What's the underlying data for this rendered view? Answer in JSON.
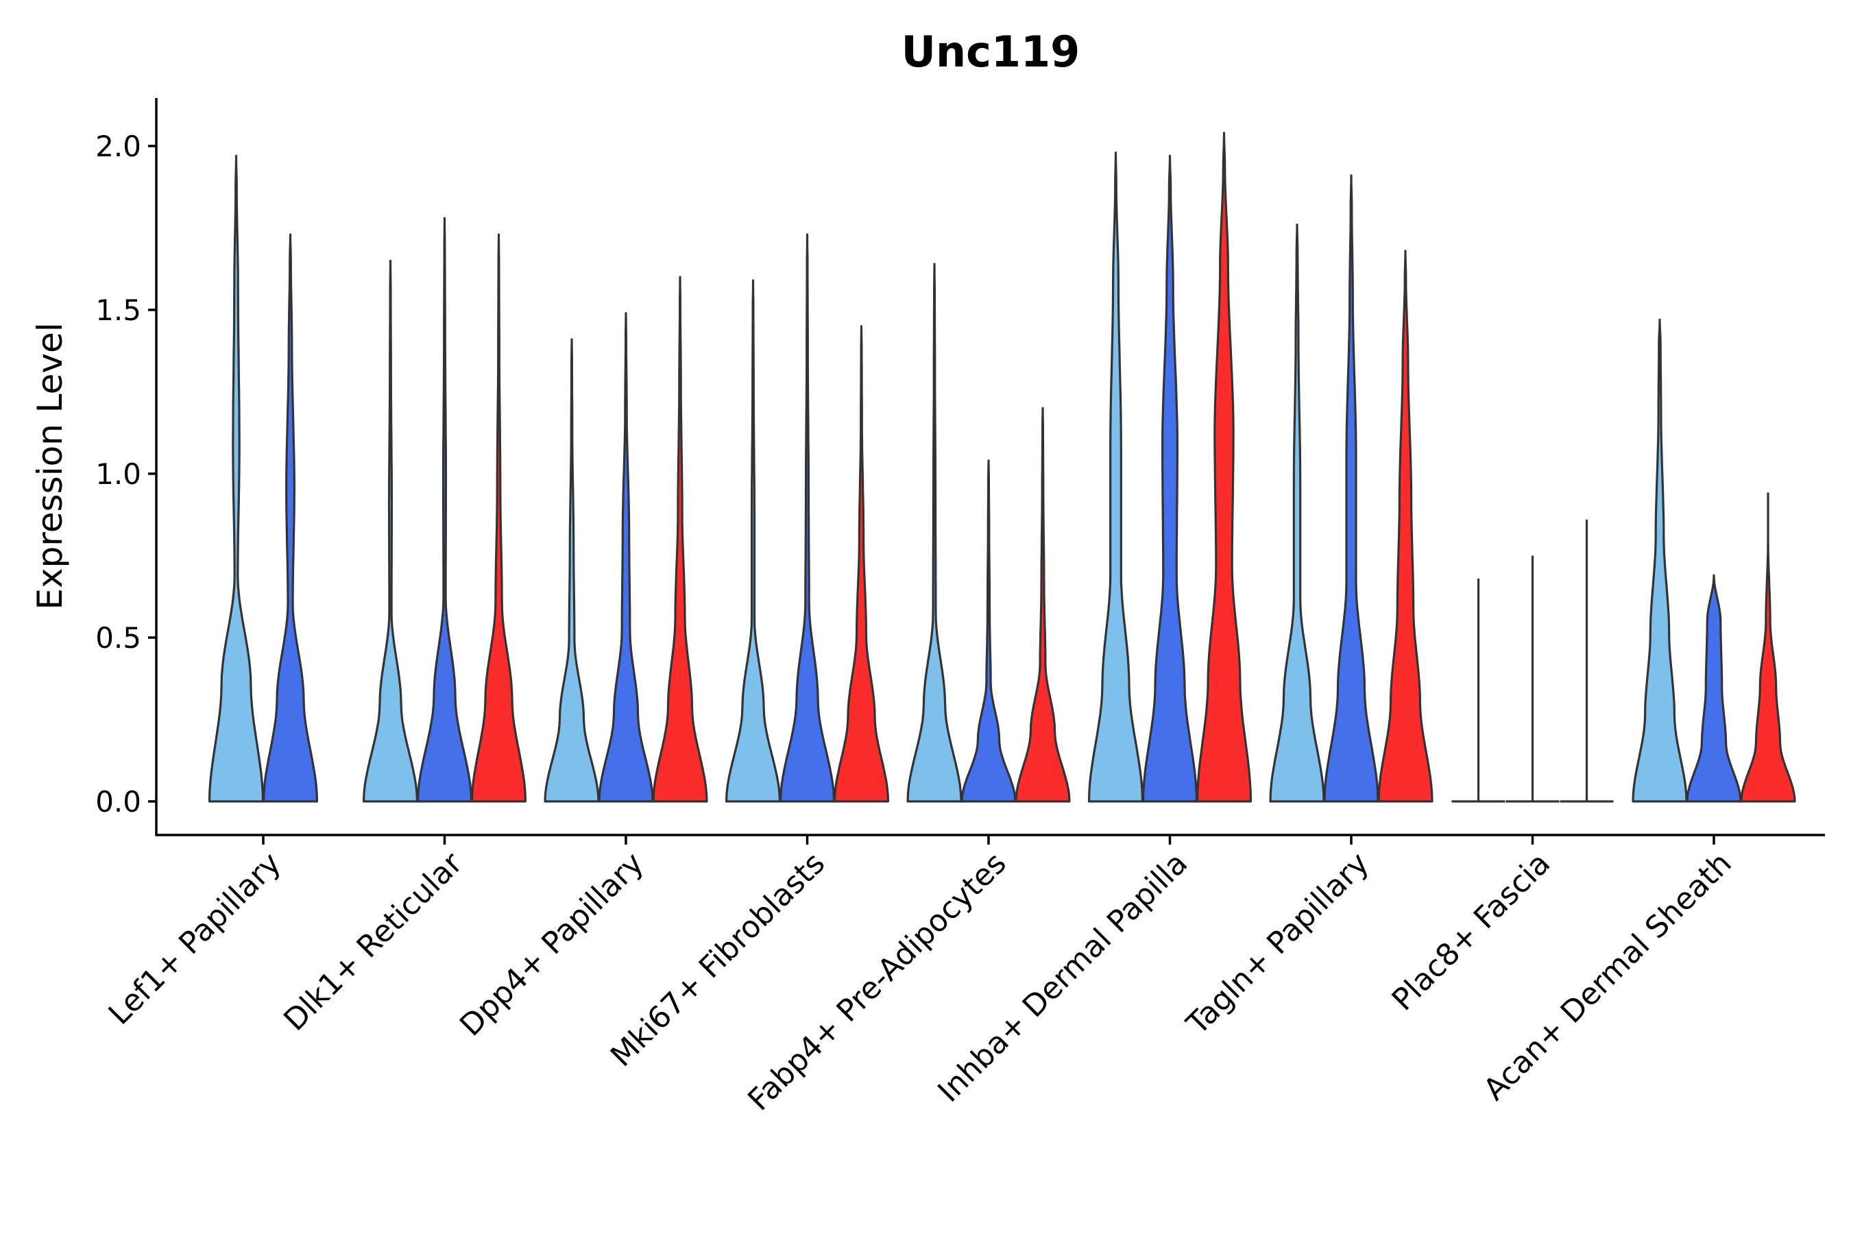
{
  "chart_data": {
    "type": "violin",
    "title": "Unc119",
    "ylabel": "Expression Level",
    "xlabel": "",
    "ylim": [
      -0.1,
      2.15
    ],
    "yticks": [
      {
        "value": 0.0,
        "label": "0.0"
      },
      {
        "value": 0.5,
        "label": "0.5"
      },
      {
        "value": 1.0,
        "label": "1.0"
      },
      {
        "value": 1.5,
        "label": "1.5"
      },
      {
        "value": 2.0,
        "label": "2.0"
      }
    ],
    "group_colors": [
      "#7fbfeb",
      "#4570ec",
      "#fb2c2c"
    ],
    "categories": [
      {
        "label": "Lef1+ Papillary",
        "violins": [
          {
            "group": 0,
            "max": 1.97,
            "widths": [
              1.0,
              0.55,
              0.06,
              0.12,
              0.07,
              0.02
            ]
          },
          {
            "group": 1,
            "max": 1.73,
            "widths": [
              1.0,
              0.5,
              0.09,
              0.15,
              0.06,
              0.02
            ]
          }
        ]
      },
      {
        "label": "Dlk1+ Reticular",
        "violins": [
          {
            "group": 0,
            "max": 1.65,
            "widths": [
              1.0,
              0.4,
              0.04,
              0.05,
              0.02,
              0.01
            ]
          },
          {
            "group": 1,
            "max": 1.78,
            "widths": [
              1.0,
              0.4,
              0.04,
              0.05,
              0.02,
              0.01
            ]
          },
          {
            "group": 2,
            "max": 1.73,
            "widths": [
              1.0,
              0.5,
              0.12,
              0.06,
              0.02,
              0.01
            ]
          }
        ]
      },
      {
        "label": "Dpp4+ Papillary",
        "violins": [
          {
            "group": 0,
            "max": 1.41,
            "widths": [
              1.0,
              0.45,
              0.1,
              0.07,
              0.02,
              0.01
            ]
          },
          {
            "group": 1,
            "max": 1.49,
            "widths": [
              1.0,
              0.45,
              0.15,
              0.12,
              0.03,
              0.01
            ]
          },
          {
            "group": 2,
            "max": 1.6,
            "widths": [
              1.0,
              0.45,
              0.18,
              0.08,
              0.03,
              0.01
            ]
          }
        ]
      },
      {
        "label": "Mki67+ Fibroblasts",
        "violins": [
          {
            "group": 0,
            "max": 1.59,
            "widths": [
              1.0,
              0.4,
              0.05,
              0.05,
              0.02,
              0.01
            ]
          },
          {
            "group": 1,
            "max": 1.73,
            "widths": [
              1.0,
              0.4,
              0.07,
              0.05,
              0.02,
              0.01
            ]
          },
          {
            "group": 2,
            "max": 1.45,
            "widths": [
              1.0,
              0.5,
              0.18,
              0.08,
              0.02,
              0.01
            ]
          }
        ]
      },
      {
        "label": "Fabp4+ Pre-Adipocytes",
        "violins": [
          {
            "group": 0,
            "max": 1.64,
            "widths": [
              1.0,
              0.4,
              0.05,
              0.04,
              0.02,
              0.01
            ]
          },
          {
            "group": 1,
            "max": 1.04,
            "widths": [
              1.0,
              0.4,
              0.08,
              0.04,
              0.02,
              0.01
            ]
          },
          {
            "group": 2,
            "max": 1.2,
            "widths": [
              1.0,
              0.45,
              0.1,
              0.05,
              0.02,
              0.01
            ]
          }
        ]
      },
      {
        "label": "Inhba+ Dermal Papilla",
        "violins": [
          {
            "group": 0,
            "max": 1.98,
            "widths": [
              1.0,
              0.5,
              0.2,
              0.2,
              0.1,
              0.02
            ]
          },
          {
            "group": 1,
            "max": 1.97,
            "widths": [
              1.0,
              0.55,
              0.25,
              0.28,
              0.12,
              0.03
            ]
          },
          {
            "group": 2,
            "max": 2.04,
            "widths": [
              1.0,
              0.6,
              0.3,
              0.35,
              0.15,
              0.03
            ]
          }
        ]
      },
      {
        "label": "Tagln+ Papillary",
        "violins": [
          {
            "group": 0,
            "max": 1.76,
            "widths": [
              1.0,
              0.5,
              0.12,
              0.12,
              0.05,
              0.02
            ]
          },
          {
            "group": 1,
            "max": 1.91,
            "widths": [
              1.0,
              0.5,
              0.18,
              0.18,
              0.06,
              0.02
            ]
          },
          {
            "group": 2,
            "max": 1.68,
            "widths": [
              1.0,
              0.55,
              0.3,
              0.22,
              0.1,
              0.02
            ]
          }
        ]
      },
      {
        "label": "Plac8+ Fascia",
        "violins": [
          {
            "group": 0,
            "max": 0.68,
            "widths": [
              0.0,
              0.0,
              0.0,
              0.0,
              0.0,
              0.0
            ]
          },
          {
            "group": 1,
            "max": 0.75,
            "widths": [
              0.0,
              0.0,
              0.0,
              0.0,
              0.0,
              0.0
            ]
          },
          {
            "group": 2,
            "max": 0.86,
            "widths": [
              0.0,
              0.0,
              0.0,
              0.0,
              0.0,
              0.0
            ]
          }
        ]
      },
      {
        "label": "Acan+ Dermal Sheath",
        "violins": [
          {
            "group": 0,
            "max": 1.47,
            "widths": [
              1.0,
              0.55,
              0.35,
              0.15,
              0.05,
              0.03
            ]
          },
          {
            "group": 1,
            "max": 0.69,
            "widths": [
              1.0,
              0.45,
              0.3,
              0.25,
              0.0,
              0.0
            ]
          },
          {
            "group": 2,
            "max": 0.94,
            "widths": [
              1.0,
              0.45,
              0.3,
              0.08,
              0.0,
              0.0
            ]
          }
        ]
      }
    ]
  }
}
